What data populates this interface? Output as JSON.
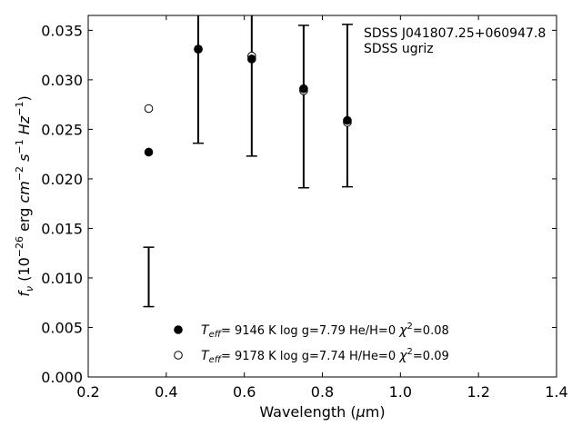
{
  "chart_data": {
    "type": "scatter",
    "xlabel": "Wavelength (μm)",
    "ylabel": "f_ν (10^-26 erg cm^-2 s^-1 Hz^-1)",
    "xlim": [
      0.2,
      1.4
    ],
    "ylim": [
      0.0,
      0.0365
    ],
    "x_ticks": [
      "0.2",
      "0.4",
      "0.6",
      "0.8",
      "1.0",
      "1.2",
      "1.4"
    ],
    "y_ticks": [
      "0.000",
      "0.005",
      "0.010",
      "0.015",
      "0.020",
      "0.025",
      "0.030",
      "0.035"
    ],
    "grid": false,
    "annotations": [
      "SDSS J041807.25+060947.8",
      "SDSS ugriz"
    ],
    "observed": {
      "points": [
        {
          "band": "u",
          "x": 0.355,
          "y": 0.0101,
          "err": 0.003
        },
        {
          "band": "g",
          "x": 0.482,
          "y": 0.0331,
          "err": 0.0095
        },
        {
          "band": "r",
          "x": 0.619,
          "y": 0.0322,
          "err": 0.0099
        },
        {
          "band": "i",
          "x": 0.752,
          "y": 0.0273,
          "err": 0.0082
        },
        {
          "band": "z",
          "x": 0.864,
          "y": 0.0274,
          "err": 0.0082
        }
      ]
    },
    "series": [
      {
        "legend": {
          "prefix": "T",
          "sub": "eff",
          "values": "=  9146 K  log g=7.79  He/H=0  ",
          "chi_label": "χ",
          "chi_value": "=0.08"
        },
        "marker": "filled-circle",
        "x": [
          0.355,
          0.482,
          0.619,
          0.752,
          0.864
        ],
        "y": [
          0.0227,
          0.0331,
          0.0321,
          0.0291,
          0.0259
        ]
      },
      {
        "legend": {
          "prefix": "T",
          "sub": "eff",
          "values": "=  9178 K  log g=7.74  H/He=0  ",
          "chi_label": "χ",
          "chi_value": "=0.09"
        },
        "marker": "open-circle",
        "x": [
          0.355,
          0.482,
          0.619,
          0.752,
          0.864
        ],
        "y": [
          0.0271,
          0.0331,
          0.0324,
          0.0289,
          0.0257
        ]
      }
    ],
    "legend_position": "bottom-center",
    "colors": {
      "marker": "#000000",
      "errorbar": "#000000",
      "open_fill": "#ffffff"
    }
  }
}
